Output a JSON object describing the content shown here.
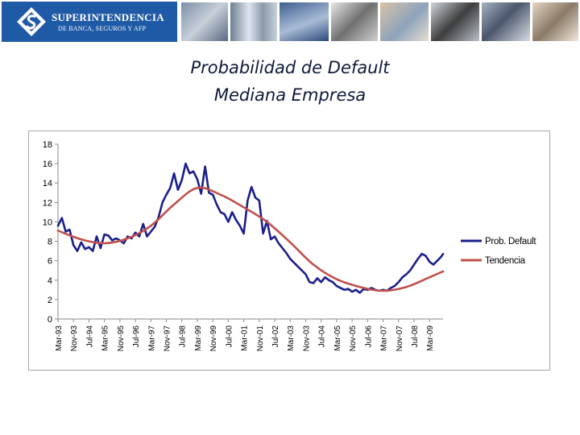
{
  "banner": {
    "logo_name": "SUPERINTENDENCIA",
    "logo_sub": "DE BANCA, SEGUROS Y AFP"
  },
  "slide_title": {
    "line1": "Probabilidad de Default",
    "line2": "Mediana Empresa"
  },
  "colors": {
    "banner_blue": "#1f5aa6",
    "series_default": "#1a1f8c",
    "series_trend": "#c0504d"
  },
  "chart_data": {
    "type": "line",
    "title": "",
    "xlabel": "",
    "ylabel": "",
    "ylim": [
      0,
      18
    ],
    "yticks": [
      0,
      2,
      4,
      6,
      8,
      10,
      12,
      14,
      16,
      18
    ],
    "grid": false,
    "legend_position": "right",
    "x_tick_labels": [
      "Mar-93",
      "Nov-93",
      "Jul-94",
      "Mar-95",
      "Nov-95",
      "Jul-96",
      "Mar-97",
      "Nov-97",
      "Jul-98",
      "Mar-99",
      "Nov-99",
      "Jul-00",
      "Mar-01",
      "Nov-01",
      "Jul-02",
      "Mar-03",
      "Nov-03",
      "Jul-04",
      "Mar-05",
      "Nov-05",
      "Jul-06",
      "Mar-07",
      "Nov-07",
      "Jul-08",
      "Mar-09"
    ],
    "x_start": "1993-03",
    "x_end": "2009-10",
    "series": [
      {
        "name": "Prob. Default",
        "color": "#1a1f8c",
        "points": [
          [
            "1993-03",
            9.6
          ],
          [
            "1993-05",
            10.4
          ],
          [
            "1993-07",
            9.0
          ],
          [
            "1993-09",
            9.2
          ],
          [
            "1993-11",
            7.6
          ],
          [
            "1994-01",
            7.0
          ],
          [
            "1994-03",
            7.9
          ],
          [
            "1994-05",
            7.2
          ],
          [
            "1994-07",
            7.4
          ],
          [
            "1994-09",
            7.0
          ],
          [
            "1994-11",
            8.5
          ],
          [
            "1995-01",
            7.3
          ],
          [
            "1995-03",
            8.7
          ],
          [
            "1995-05",
            8.6
          ],
          [
            "1995-07",
            8.1
          ],
          [
            "1995-09",
            8.3
          ],
          [
            "1995-11",
            8.1
          ],
          [
            "1996-01",
            7.8
          ],
          [
            "1996-03",
            8.5
          ],
          [
            "1996-05",
            8.3
          ],
          [
            "1996-07",
            8.9
          ],
          [
            "1996-09",
            8.5
          ],
          [
            "1996-11",
            9.8
          ],
          [
            "1997-01",
            8.5
          ],
          [
            "1997-03",
            9.0
          ],
          [
            "1997-05",
            9.5
          ],
          [
            "1997-07",
            10.5
          ],
          [
            "1997-09",
            12.0
          ],
          [
            "1997-11",
            12.8
          ],
          [
            "1998-01",
            13.5
          ],
          [
            "1998-03",
            15.0
          ],
          [
            "1998-05",
            13.3
          ],
          [
            "1998-07",
            14.3
          ],
          [
            "1998-09",
            16.0
          ],
          [
            "1998-11",
            15.0
          ],
          [
            "1999-01",
            15.2
          ],
          [
            "1999-03",
            14.4
          ],
          [
            "1999-05",
            12.9
          ],
          [
            "1999-07",
            15.7
          ],
          [
            "1999-09",
            13.0
          ],
          [
            "1999-11",
            12.8
          ],
          [
            "2000-01",
            11.8
          ],
          [
            "2000-03",
            11.0
          ],
          [
            "2000-05",
            10.8
          ],
          [
            "2000-07",
            10.0
          ],
          [
            "2000-09",
            11.0
          ],
          [
            "2000-11",
            10.2
          ],
          [
            "2001-01",
            9.6
          ],
          [
            "2001-03",
            8.8
          ],
          [
            "2001-05",
            12.2
          ],
          [
            "2001-07",
            13.6
          ],
          [
            "2001-09",
            12.5
          ],
          [
            "2001-11",
            12.2
          ],
          [
            "2002-01",
            8.8
          ],
          [
            "2002-03",
            10.1
          ],
          [
            "2002-05",
            8.2
          ],
          [
            "2002-07",
            8.5
          ],
          [
            "2002-09",
            7.8
          ],
          [
            "2002-11",
            7.3
          ],
          [
            "2003-01",
            6.8
          ],
          [
            "2003-03",
            6.2
          ],
          [
            "2003-05",
            5.8
          ],
          [
            "2003-07",
            5.4
          ],
          [
            "2003-09",
            5.0
          ],
          [
            "2003-11",
            4.6
          ],
          [
            "2004-01",
            3.8
          ],
          [
            "2004-03",
            3.7
          ],
          [
            "2004-05",
            4.2
          ],
          [
            "2004-07",
            3.8
          ],
          [
            "2004-09",
            4.3
          ],
          [
            "2004-11",
            4.0
          ],
          [
            "2005-01",
            3.8
          ],
          [
            "2005-03",
            3.4
          ],
          [
            "2005-05",
            3.2
          ],
          [
            "2005-07",
            3.0
          ],
          [
            "2005-09",
            3.1
          ],
          [
            "2005-11",
            2.8
          ],
          [
            "2006-01",
            3.0
          ],
          [
            "2006-03",
            2.7
          ],
          [
            "2006-05",
            3.1
          ],
          [
            "2006-07",
            3.0
          ],
          [
            "2006-09",
            3.2
          ],
          [
            "2006-11",
            3.0
          ],
          [
            "2007-01",
            2.9
          ],
          [
            "2007-03",
            3.0
          ],
          [
            "2007-05",
            2.9
          ],
          [
            "2007-07",
            3.2
          ],
          [
            "2007-09",
            3.4
          ],
          [
            "2007-11",
            3.8
          ],
          [
            "2008-01",
            4.3
          ],
          [
            "2008-03",
            4.6
          ],
          [
            "2008-05",
            5.0
          ],
          [
            "2008-07",
            5.6
          ],
          [
            "2008-09",
            6.2
          ],
          [
            "2008-11",
            6.7
          ],
          [
            "2009-01",
            6.5
          ],
          [
            "2009-03",
            5.9
          ],
          [
            "2009-05",
            5.6
          ],
          [
            "2009-07",
            6.0
          ],
          [
            "2009-09",
            6.4
          ],
          [
            "2009-10",
            6.7
          ]
        ]
      },
      {
        "name": "Tendencia",
        "color": "#c0504d",
        "points": [
          [
            "1993-03",
            9.1
          ],
          [
            "1994-03",
            8.2
          ],
          [
            "1995-03",
            7.8
          ],
          [
            "1996-03",
            8.3
          ],
          [
            "1997-03",
            9.6
          ],
          [
            "1998-03",
            11.8
          ],
          [
            "1999-03",
            13.5
          ],
          [
            "2000-03",
            12.8
          ],
          [
            "2001-03",
            11.5
          ],
          [
            "2002-03",
            10.0
          ],
          [
            "2003-03",
            7.9
          ],
          [
            "2004-03",
            5.6
          ],
          [
            "2005-03",
            4.1
          ],
          [
            "2006-03",
            3.3
          ],
          [
            "2007-03",
            2.9
          ],
          [
            "2008-03",
            3.3
          ],
          [
            "2009-03",
            4.3
          ],
          [
            "2009-10",
            4.9
          ]
        ]
      }
    ]
  }
}
